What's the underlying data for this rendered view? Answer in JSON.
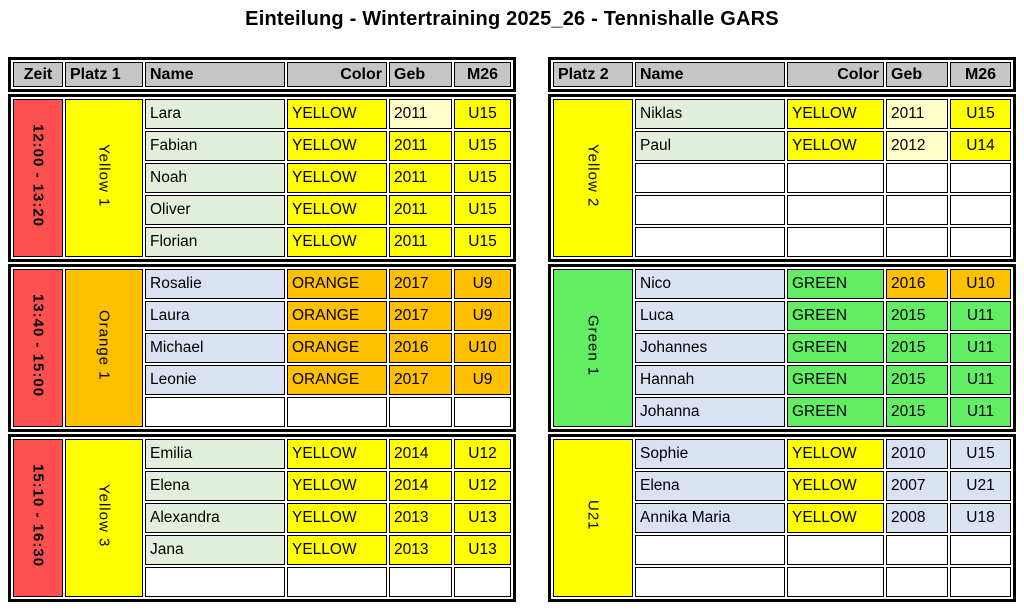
{
  "title": "Einteilung - Wintertraining 2025_26 - Tennishalle GARS",
  "colors": {
    "header_bg": "#C6C6C6",
    "red": "#FF5050",
    "yellow": "#FFFF00",
    "pale_yellow": "#FFFFC8",
    "orange": "#FFC000",
    "green": "#62EE62",
    "light_green": "#E2EFDA",
    "light_blue": "#D9E1F2",
    "white": "#FFFFFF"
  },
  "left_table": {
    "headers": [
      "Zeit",
      "Platz 1",
      "Name",
      "Color",
      "Geb",
      "M26"
    ],
    "blocks": [
      {
        "zeit": "12:00 - 13:20",
        "zeit_bg": "#FF5050",
        "platz": "Yellow 1",
        "platz_bg": "#FFFF00",
        "rows": [
          {
            "cells": [
              "Lara",
              "YELLOW",
              "2011",
              "U15"
            ],
            "bgs": [
              "#E2EFDA",
              "#FFFF00",
              "#FFFFC8",
              "#FFFF00"
            ]
          },
          {
            "cells": [
              "Fabian",
              "YELLOW",
              "2011",
              "U15"
            ],
            "bgs": [
              "#E2EFDA",
              "#FFFF00",
              "#FFFF00",
              "#FFFF00"
            ]
          },
          {
            "cells": [
              "Noah",
              "YELLOW",
              "2011",
              "U15"
            ],
            "bgs": [
              "#E2EFDA",
              "#FFFF00",
              "#FFFF00",
              "#FFFF00"
            ]
          },
          {
            "cells": [
              "Oliver",
              "YELLOW",
              "2011",
              "U15"
            ],
            "bgs": [
              "#E2EFDA",
              "#FFFF00",
              "#FFFF00",
              "#FFFF00"
            ]
          },
          {
            "cells": [
              "Florian",
              "YELLOW",
              "2011",
              "U15"
            ],
            "bgs": [
              "#E2EFDA",
              "#FFFF00",
              "#FFFF00",
              "#FFFF00"
            ]
          }
        ]
      },
      {
        "zeit": "13:40 - 15:00",
        "zeit_bg": "#FF5050",
        "platz": "Orange 1",
        "platz_bg": "#FFC000",
        "rows": [
          {
            "cells": [
              "Rosalie",
              "ORANGE",
              "2017",
              "U9"
            ],
            "bgs": [
              "#D9E1F2",
              "#FFC000",
              "#FFC000",
              "#FFC000"
            ]
          },
          {
            "cells": [
              "Laura",
              "ORANGE",
              "2017",
              "U9"
            ],
            "bgs": [
              "#D9E1F2",
              "#FFC000",
              "#FFC000",
              "#FFC000"
            ]
          },
          {
            "cells": [
              "Michael",
              "ORANGE",
              "2016",
              "U10"
            ],
            "bgs": [
              "#D9E1F2",
              "#FFC000",
              "#FFC000",
              "#FFC000"
            ]
          },
          {
            "cells": [
              "Leonie",
              "ORANGE",
              "2017",
              "U9"
            ],
            "bgs": [
              "#D9E1F2",
              "#FFC000",
              "#FFC000",
              "#FFC000"
            ]
          },
          {
            "cells": [
              "",
              "",
              "",
              ""
            ],
            "bgs": [
              "#FFFFFF",
              "#FFFFFF",
              "#FFFFFF",
              "#FFFFFF"
            ]
          }
        ]
      },
      {
        "zeit": "15:10 - 16:30",
        "zeit_bg": "#FF5050",
        "platz": "Yellow 3",
        "platz_bg": "#FFFF00",
        "rows": [
          {
            "cells": [
              "Emilia",
              "YELLOW",
              "2014",
              "U12"
            ],
            "bgs": [
              "#E2EFDA",
              "#FFFF00",
              "#FFFF00",
              "#FFFF00"
            ]
          },
          {
            "cells": [
              "Elena",
              "YELLOW",
              "2014",
              "U12"
            ],
            "bgs": [
              "#E2EFDA",
              "#FFFF00",
              "#FFFF00",
              "#FFFF00"
            ]
          },
          {
            "cells": [
              "Alexandra",
              "YELLOW",
              "2013",
              "U13"
            ],
            "bgs": [
              "#E2EFDA",
              "#FFFF00",
              "#FFFF00",
              "#FFFF00"
            ]
          },
          {
            "cells": [
              "Jana",
              "YELLOW",
              "2013",
              "U13"
            ],
            "bgs": [
              "#E2EFDA",
              "#FFFF00",
              "#FFFF00",
              "#FFFF00"
            ]
          },
          {
            "cells": [
              "",
              "",
              "",
              ""
            ],
            "bgs": [
              "#FFFFFF",
              "#FFFFFF",
              "#FFFFFF",
              "#FFFFFF"
            ]
          }
        ]
      }
    ]
  },
  "right_table": {
    "headers": [
      "Platz 2",
      "Name",
      "Color",
      "Geb",
      "M26"
    ],
    "blocks": [
      {
        "platz": "Yellow 2",
        "platz_bg": "#FFFF00",
        "rows": [
          {
            "cells": [
              "Niklas",
              "YELLOW",
              "2011",
              "U15"
            ],
            "bgs": [
              "#E2EFDA",
              "#FFFF00",
              "#FFFFC8",
              "#FFFF00"
            ]
          },
          {
            "cells": [
              "Paul",
              "YELLOW",
              "2012",
              "U14"
            ],
            "bgs": [
              "#E2EFDA",
              "#FFFF00",
              "#FFFFC8",
              "#FFFF00"
            ]
          },
          {
            "cells": [
              "",
              "",
              "",
              ""
            ],
            "bgs": [
              "#FFFFFF",
              "#FFFFFF",
              "#FFFFFF",
              "#FFFFFF"
            ]
          },
          {
            "cells": [
              "",
              "",
              "",
              ""
            ],
            "bgs": [
              "#FFFFFF",
              "#FFFFFF",
              "#FFFFFF",
              "#FFFFFF"
            ]
          },
          {
            "cells": [
              "",
              "",
              "",
              ""
            ],
            "bgs": [
              "#FFFFFF",
              "#FFFFFF",
              "#FFFFFF",
              "#FFFFFF"
            ]
          }
        ]
      },
      {
        "platz": "Green 1",
        "platz_bg": "#62EE62",
        "rows": [
          {
            "cells": [
              "Nico",
              "GREEN",
              "2016",
              "U10"
            ],
            "bgs": [
              "#D9E1F2",
              "#62EE62",
              "#FFC000",
              "#FFC000"
            ]
          },
          {
            "cells": [
              "Luca",
              "GREEN",
              "2015",
              "U11"
            ],
            "bgs": [
              "#D9E1F2",
              "#62EE62",
              "#62EE62",
              "#62EE62"
            ]
          },
          {
            "cells": [
              "Johannes",
              "GREEN",
              "2015",
              "U11"
            ],
            "bgs": [
              "#D9E1F2",
              "#62EE62",
              "#62EE62",
              "#62EE62"
            ]
          },
          {
            "cells": [
              "Hannah",
              "GREEN",
              "2015",
              "U11"
            ],
            "bgs": [
              "#D9E1F2",
              "#62EE62",
              "#62EE62",
              "#62EE62"
            ]
          },
          {
            "cells": [
              "Johanna",
              "GREEN",
              "2015",
              "U11"
            ],
            "bgs": [
              "#D9E1F2",
              "#62EE62",
              "#62EE62",
              "#62EE62"
            ]
          }
        ]
      },
      {
        "platz": "U21",
        "platz_bg": "#FFFF00",
        "rows": [
          {
            "cells": [
              "Sophie",
              "YELLOW",
              "2010",
              "U15"
            ],
            "bgs": [
              "#D9E1F2",
              "#FFFF00",
              "#D9E1F2",
              "#D9E1F2"
            ]
          },
          {
            "cells": [
              "Elena",
              "YELLOW",
              "2007",
              "U21"
            ],
            "bgs": [
              "#D9E1F2",
              "#FFFF00",
              "#D9E1F2",
              "#D9E1F2"
            ]
          },
          {
            "cells": [
              "Annika Maria",
              "YELLOW",
              "2008",
              "U18"
            ],
            "bgs": [
              "#D9E1F2",
              "#FFFF00",
              "#D9E1F2",
              "#D9E1F2"
            ]
          },
          {
            "cells": [
              "",
              "",
              "",
              ""
            ],
            "bgs": [
              "#FFFFFF",
              "#FFFFFF",
              "#FFFFFF",
              "#FFFFFF"
            ]
          },
          {
            "cells": [
              "",
              "",
              "",
              ""
            ],
            "bgs": [
              "#FFFFFF",
              "#FFFFFF",
              "#FFFFFF",
              "#FFFFFF"
            ]
          }
        ]
      }
    ]
  }
}
